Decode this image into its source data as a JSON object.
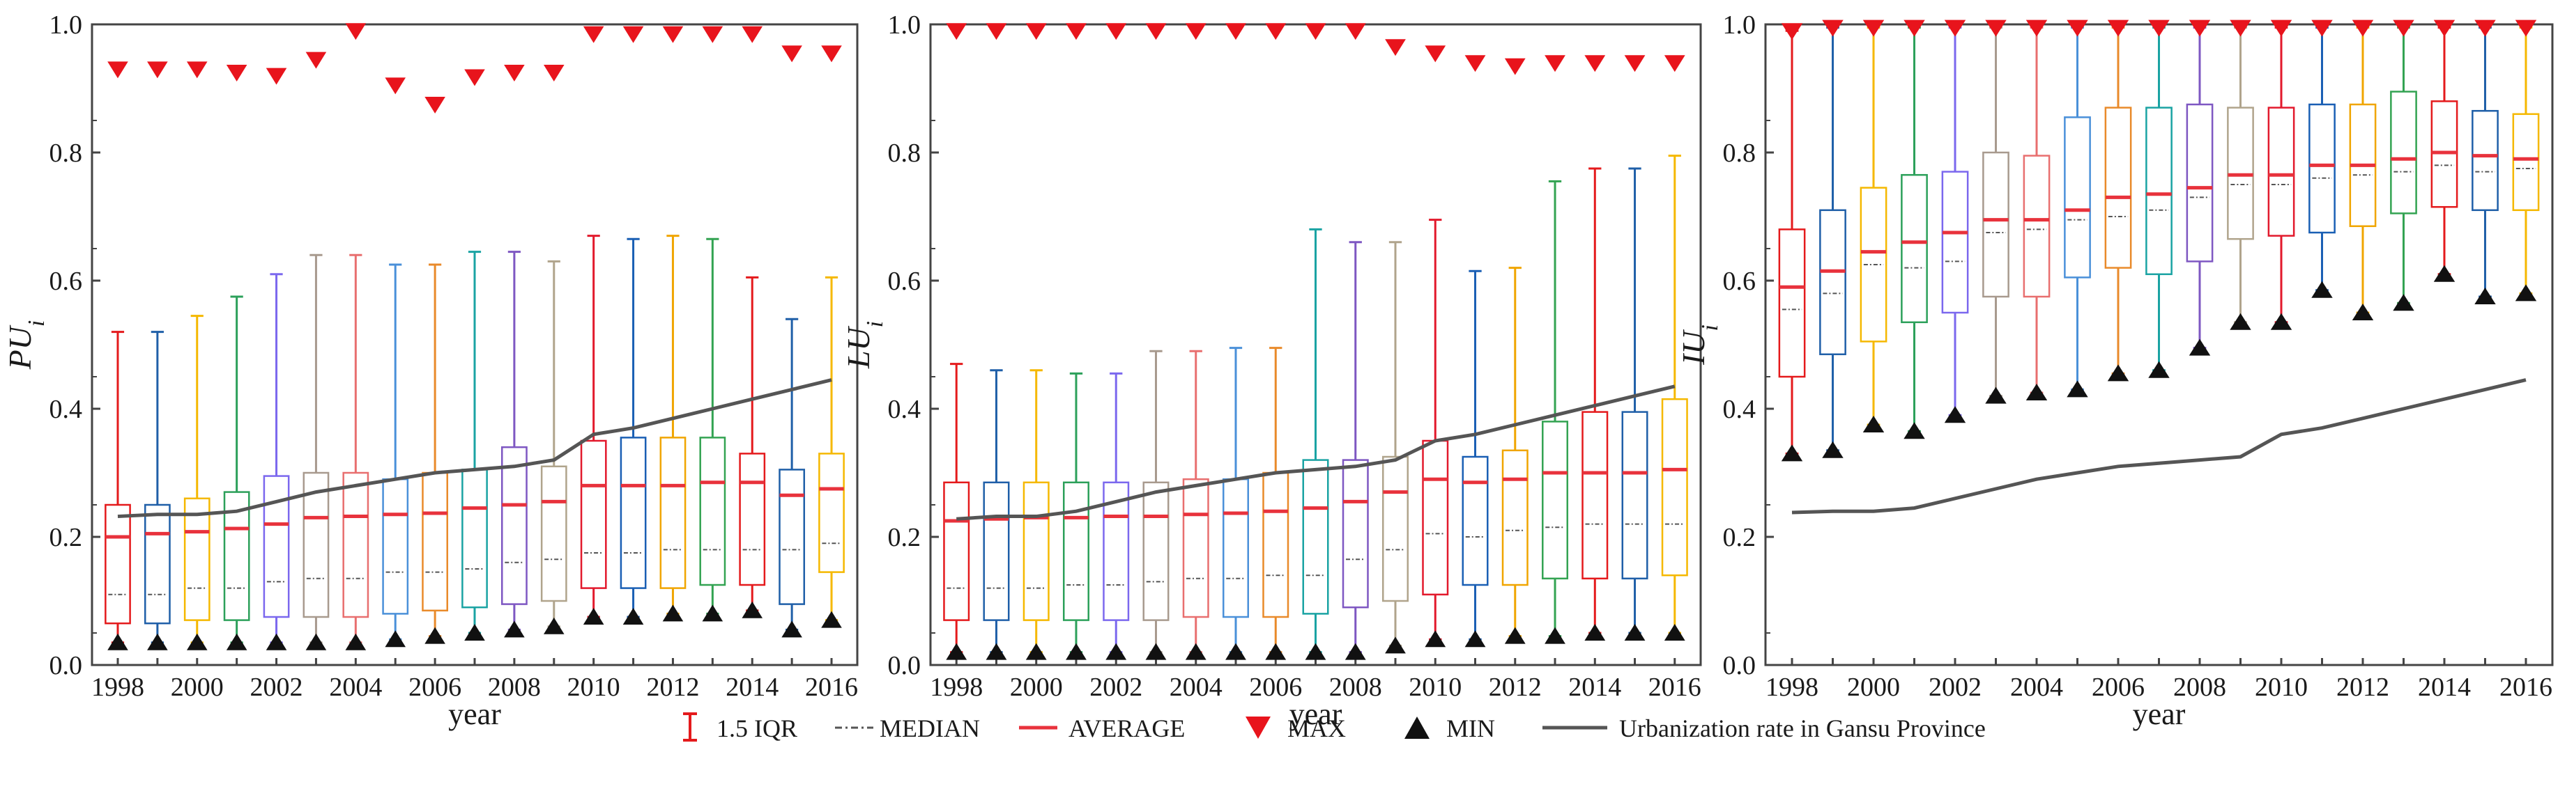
{
  "colors": {
    "box_cycle": [
      "#e41a1c",
      "#1f5fa8",
      "#f5b800",
      "#2ca05a",
      "#7b68ee",
      "#a89a8e",
      "#e86f6f",
      "#4a90d9",
      "#e98a2a",
      "#1aa3a3",
      "#7e57c2",
      "#b0a48c",
      "#e2192c",
      "#1a5fb4",
      "#f0a500",
      "#33a352"
    ],
    "average": "#e8323c",
    "median": "#555555",
    "max_marker": "#e8141c",
    "min_marker": "#111111",
    "urbanization_line": "#555555",
    "axis": "#444444"
  },
  "legend": {
    "iqr_label": "1.5 IQR",
    "median_label": "MEDIAN",
    "average_label": "AVERAGE",
    "max_label": "MAX",
    "min_label": "MIN",
    "urbanization_label": "Urbanization rate in Gansu Province"
  },
  "chart_data": [
    {
      "type": "boxplot",
      "ylabel_main": "PU",
      "ylabel_sub": "i",
      "xlabel": "year",
      "ylim": [
        0.0,
        1.0
      ],
      "yticks": [
        "0.0",
        "0.2",
        "0.4",
        "0.6",
        "0.8",
        "1.0"
      ],
      "xtick_labels": [
        "1998",
        "2000",
        "2002",
        "2004",
        "2006",
        "2008",
        "2010",
        "2012",
        "2014",
        "2016"
      ],
      "years": [
        1998,
        1999,
        2000,
        2001,
        2002,
        2003,
        2004,
        2005,
        2006,
        2007,
        2008,
        2009,
        2010,
        2011,
        2012,
        2013,
        2014,
        2015,
        2016
      ],
      "series": [
        {
          "name": "MAX",
          "values": [
            0.93,
            0.93,
            0.93,
            0.925,
            0.92,
            0.945,
            0.99,
            0.905,
            0.875,
            0.918,
            0.925,
            0.925,
            0.985,
            0.985,
            0.985,
            0.985,
            0.985,
            0.955,
            0.955
          ]
        },
        {
          "name": "MIN",
          "values": [
            0.035,
            0.035,
            0.035,
            0.035,
            0.035,
            0.035,
            0.035,
            0.04,
            0.045,
            0.05,
            0.055,
            0.06,
            0.075,
            0.075,
            0.08,
            0.08,
            0.085,
            0.055,
            0.07
          ]
        },
        {
          "name": "whisker_high",
          "values": [
            0.52,
            0.52,
            0.545,
            0.575,
            0.61,
            0.64,
            0.64,
            0.625,
            0.625,
            0.645,
            0.645,
            0.63,
            0.67,
            0.665,
            0.67,
            0.665,
            0.605,
            0.54,
            0.605
          ]
        },
        {
          "name": "whisker_low",
          "values": [
            0.035,
            0.035,
            0.035,
            0.035,
            0.035,
            0.035,
            0.035,
            0.04,
            0.045,
            0.05,
            0.055,
            0.06,
            0.075,
            0.075,
            0.08,
            0.08,
            0.085,
            0.055,
            0.07
          ]
        },
        {
          "name": "Q3",
          "values": [
            0.25,
            0.25,
            0.26,
            0.27,
            0.295,
            0.3,
            0.3,
            0.29,
            0.3,
            0.305,
            0.34,
            0.31,
            0.35,
            0.355,
            0.355,
            0.355,
            0.33,
            0.305,
            0.33
          ]
        },
        {
          "name": "Q1",
          "values": [
            0.065,
            0.065,
            0.07,
            0.07,
            0.075,
            0.075,
            0.075,
            0.08,
            0.085,
            0.09,
            0.095,
            0.1,
            0.12,
            0.12,
            0.12,
            0.125,
            0.125,
            0.095,
            0.145
          ]
        },
        {
          "name": "AVERAGE",
          "values": [
            0.2,
            0.205,
            0.208,
            0.213,
            0.22,
            0.23,
            0.232,
            0.235,
            0.237,
            0.245,
            0.25,
            0.255,
            0.28,
            0.28,
            0.28,
            0.285,
            0.285,
            0.265,
            0.275
          ]
        },
        {
          "name": "MEDIAN",
          "values": [
            0.11,
            0.11,
            0.12,
            0.12,
            0.13,
            0.135,
            0.135,
            0.145,
            0.145,
            0.15,
            0.16,
            0.165,
            0.175,
            0.175,
            0.18,
            0.18,
            0.18,
            0.18,
            0.19
          ]
        },
        {
          "name": "Urbanization rate in Gansu Province",
          "values": [
            0.232,
            0.235,
            0.235,
            0.24,
            0.255,
            0.27,
            0.28,
            0.29,
            0.3,
            0.305,
            0.31,
            0.32,
            0.36,
            0.37,
            0.385,
            0.4,
            0.415,
            0.43,
            0.445
          ]
        }
      ]
    },
    {
      "type": "boxplot",
      "ylabel_main": "LU",
      "ylabel_sub": "i",
      "xlabel": "year",
      "ylim": [
        0.0,
        1.0
      ],
      "yticks": [
        "0.0",
        "0.2",
        "0.4",
        "0.6",
        "0.8",
        "1.0"
      ],
      "xtick_labels": [
        "1998",
        "2000",
        "2002",
        "2004",
        "2006",
        "2008",
        "2010",
        "2012",
        "2014",
        "2016"
      ],
      "years": [
        1998,
        1999,
        2000,
        2001,
        2002,
        2003,
        2004,
        2005,
        2006,
        2007,
        2008,
        2009,
        2010,
        2011,
        2012,
        2013,
        2014,
        2015,
        2016
      ],
      "series": [
        {
          "name": "MAX",
          "values": [
            0.99,
            0.99,
            0.99,
            0.99,
            0.99,
            0.99,
            0.99,
            0.99,
            0.99,
            0.99,
            0.99,
            0.965,
            0.955,
            0.94,
            0.935,
            0.94,
            0.94,
            0.94,
            0.94
          ]
        },
        {
          "name": "MIN",
          "values": [
            0.02,
            0.02,
            0.02,
            0.02,
            0.02,
            0.02,
            0.02,
            0.02,
            0.02,
            0.02,
            0.02,
            0.03,
            0.04,
            0.04,
            0.045,
            0.045,
            0.05,
            0.05,
            0.05
          ]
        },
        {
          "name": "whisker_high",
          "values": [
            0.47,
            0.46,
            0.46,
            0.455,
            0.455,
            0.49,
            0.49,
            0.495,
            0.495,
            0.68,
            0.66,
            0.66,
            0.695,
            0.615,
            0.62,
            0.755,
            0.775,
            0.775,
            0.795
          ]
        },
        {
          "name": "whisker_low",
          "values": [
            0.02,
            0.02,
            0.02,
            0.02,
            0.02,
            0.02,
            0.02,
            0.02,
            0.02,
            0.02,
            0.02,
            0.03,
            0.04,
            0.04,
            0.045,
            0.045,
            0.05,
            0.05,
            0.05
          ]
        },
        {
          "name": "Q3",
          "values": [
            0.285,
            0.285,
            0.285,
            0.285,
            0.285,
            0.285,
            0.29,
            0.29,
            0.3,
            0.32,
            0.32,
            0.325,
            0.35,
            0.325,
            0.335,
            0.38,
            0.395,
            0.395,
            0.415
          ]
        },
        {
          "name": "Q1",
          "values": [
            0.07,
            0.07,
            0.07,
            0.07,
            0.07,
            0.07,
            0.075,
            0.075,
            0.075,
            0.08,
            0.09,
            0.1,
            0.11,
            0.125,
            0.125,
            0.135,
            0.135,
            0.135,
            0.14
          ]
        },
        {
          "name": "AVERAGE",
          "values": [
            0.225,
            0.228,
            0.23,
            0.23,
            0.232,
            0.232,
            0.235,
            0.237,
            0.24,
            0.245,
            0.255,
            0.27,
            0.29,
            0.285,
            0.29,
            0.3,
            0.3,
            0.3,
            0.305
          ]
        },
        {
          "name": "MEDIAN",
          "values": [
            0.12,
            0.12,
            0.12,
            0.125,
            0.125,
            0.13,
            0.135,
            0.135,
            0.14,
            0.14,
            0.165,
            0.18,
            0.205,
            0.2,
            0.21,
            0.215,
            0.22,
            0.22,
            0.22
          ]
        },
        {
          "name": "Urbanization rate in Gansu Province",
          "values": [
            0.228,
            0.232,
            0.232,
            0.24,
            0.255,
            0.27,
            0.28,
            0.29,
            0.3,
            0.305,
            0.31,
            0.32,
            0.35,
            0.36,
            0.375,
            0.39,
            0.405,
            0.42,
            0.435
          ]
        }
      ]
    },
    {
      "type": "boxplot",
      "ylabel_main": "IU",
      "ylabel_sub": "i",
      "xlabel": "year",
      "ylim": [
        0.0,
        1.0
      ],
      "yticks": [
        "0.0",
        "0.2",
        "0.4",
        "0.6",
        "0.8",
        "1.0"
      ],
      "xtick_labels": [
        "1998",
        "2000",
        "2002",
        "2004",
        "2006",
        "2008",
        "2010",
        "2012",
        "2014",
        "2016"
      ],
      "years": [
        1998,
        1999,
        2000,
        2001,
        2002,
        2003,
        2004,
        2005,
        2006,
        2007,
        2008,
        2009,
        2010,
        2011,
        2012,
        2013,
        2014,
        2015,
        2016
      ],
      "series": [
        {
          "name": "MAX",
          "values": [
            0.99,
            0.995,
            0.995,
            0.995,
            0.995,
            0.995,
            0.995,
            0.995,
            0.995,
            0.995,
            0.995,
            0.995,
            0.995,
            0.995,
            0.995,
            0.995,
            0.995,
            0.995,
            0.995
          ]
        },
        {
          "name": "MIN",
          "values": [
            0.33,
            0.335,
            0.375,
            0.365,
            0.39,
            0.42,
            0.425,
            0.43,
            0.455,
            0.46,
            0.495,
            0.535,
            0.535,
            0.585,
            0.55,
            0.565,
            0.61,
            0.575,
            0.58
          ]
        },
        {
          "name": "whisker_high",
          "values": [
            0.99,
            0.995,
            0.995,
            0.995,
            0.995,
            0.995,
            0.995,
            0.995,
            0.995,
            0.995,
            0.995,
            0.995,
            0.995,
            0.995,
            0.995,
            0.995,
            0.995,
            0.995,
            0.995
          ]
        },
        {
          "name": "whisker_low",
          "values": [
            0.33,
            0.335,
            0.375,
            0.365,
            0.39,
            0.42,
            0.425,
            0.43,
            0.455,
            0.46,
            0.495,
            0.535,
            0.535,
            0.585,
            0.55,
            0.565,
            0.61,
            0.575,
            0.58
          ]
        },
        {
          "name": "Q3",
          "values": [
            0.68,
            0.71,
            0.745,
            0.765,
            0.77,
            0.8,
            0.795,
            0.855,
            0.87,
            0.87,
            0.875,
            0.87,
            0.87,
            0.875,
            0.875,
            0.895,
            0.88,
            0.865,
            0.86
          ]
        },
        {
          "name": "Q1",
          "values": [
            0.45,
            0.485,
            0.505,
            0.535,
            0.55,
            0.575,
            0.575,
            0.605,
            0.62,
            0.61,
            0.63,
            0.665,
            0.67,
            0.675,
            0.685,
            0.705,
            0.715,
            0.71,
            0.71
          ]
        },
        {
          "name": "AVERAGE",
          "values": [
            0.59,
            0.615,
            0.645,
            0.66,
            0.675,
            0.695,
            0.695,
            0.71,
            0.73,
            0.735,
            0.745,
            0.765,
            0.765,
            0.78,
            0.78,
            0.79,
            0.8,
            0.795,
            0.79
          ]
        },
        {
          "name": "MEDIAN",
          "values": [
            0.555,
            0.58,
            0.625,
            0.62,
            0.63,
            0.675,
            0.68,
            0.695,
            0.7,
            0.71,
            0.73,
            0.75,
            0.75,
            0.76,
            0.765,
            0.77,
            0.78,
            0.77,
            0.775
          ]
        },
        {
          "name": "Urbanization rate in Gansu Province",
          "values": [
            0.238,
            0.24,
            0.24,
            0.245,
            0.26,
            0.275,
            0.29,
            0.3,
            0.31,
            0.315,
            0.32,
            0.325,
            0.36,
            0.37,
            0.385,
            0.4,
            0.415,
            0.43,
            0.445
          ]
        }
      ]
    }
  ]
}
